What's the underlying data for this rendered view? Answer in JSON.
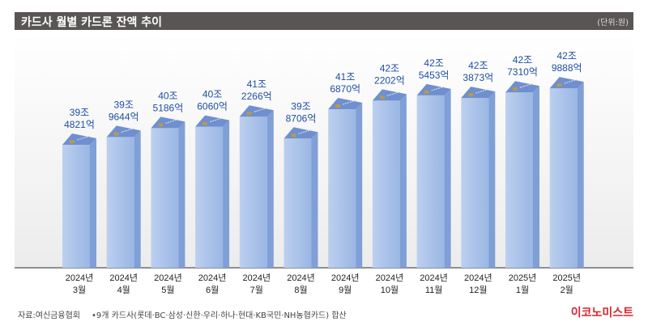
{
  "header": {
    "title": "카드사 월별 카드론 잔액 추이",
    "unit": "(단위:원)"
  },
  "chart_data": {
    "type": "bar",
    "title": "카드사 월별 카드론 잔액 추이",
    "unit": "억원",
    "categories": [
      [
        "2024년",
        "3월"
      ],
      [
        "2024년",
        "4월"
      ],
      [
        "2024년",
        "5월"
      ],
      [
        "2024년",
        "6월"
      ],
      [
        "2024년",
        "7월"
      ],
      [
        "2024년",
        "8월"
      ],
      [
        "2024년",
        "9월"
      ],
      [
        "2024년",
        "10월"
      ],
      [
        "2024년",
        "11월"
      ],
      [
        "2024년",
        "12월"
      ],
      [
        "2025년",
        "1월"
      ],
      [
        "2025년",
        "2월"
      ]
    ],
    "values": [
      394821,
      399644,
      405186,
      406060,
      412266,
      398706,
      416870,
      422202,
      425453,
      423873,
      427310,
      429888
    ],
    "labels": [
      [
        "39조",
        "4821억"
      ],
      [
        "39조",
        "9644억"
      ],
      [
        "40조",
        "5186억"
      ],
      [
        "40조",
        "6060억"
      ],
      [
        "41조",
        "2266억"
      ],
      [
        "39조",
        "8706억"
      ],
      [
        "41조",
        "6870억"
      ],
      [
        "42조",
        "2202억"
      ],
      [
        "42조",
        "5453억"
      ],
      [
        "42조",
        "3873억"
      ],
      [
        "42조",
        "7310억"
      ],
      [
        "42조",
        "9888억"
      ]
    ],
    "ylim": [
      318700,
      440000
    ],
    "grid": false,
    "colors": {
      "front": "#a9c3ea",
      "side": "#7f9fd6",
      "top": "#6f8fcf",
      "label": "#1f4fa0"
    }
  },
  "footer": {
    "source": "자료:여신금융협회",
    "note": "•9개 카드사(롯데·BC·삼성·신한·우리·하나·현대·KB국민·NH농협카드) 합산",
    "logo": "이코노미스트"
  }
}
